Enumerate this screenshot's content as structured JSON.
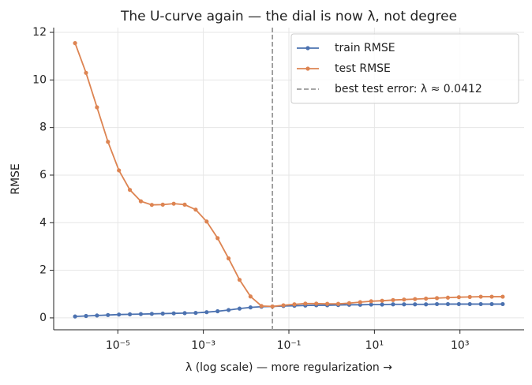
{
  "chart_data": {
    "type": "line",
    "title": "The U-curve again — the dial is now λ, not degree",
    "xlabel": "λ (log scale) — more regularization  →",
    "ylabel": "RMSE",
    "x": [
      1e-06,
      1.805e-06,
      3.257e-06,
      5.878e-06,
      1.061e-05,
      1.914e-05,
      3.455e-05,
      6.236e-05,
      0.0001125,
      0.0002031,
      0.0003665,
      0.0006615,
      0.001194,
      0.002154,
      0.003888,
      0.007017,
      0.01266,
      0.02285,
      0.04125,
      0.07444,
      0.1344,
      0.2424,
      0.4375,
      0.7896,
      1.425,
      2.572,
      4.642,
      8.377,
      15.12,
      27.28,
      49.24,
      88.86,
      160.4,
      289.4,
      522.3,
      942.7,
      1701,
      3070,
      5541,
      10000
    ],
    "series": [
      {
        "name": "train RMSE",
        "color": "#4c72b0",
        "values": [
          0.06,
          0.08,
          0.1,
          0.12,
          0.14,
          0.15,
          0.16,
          0.17,
          0.18,
          0.19,
          0.2,
          0.21,
          0.24,
          0.28,
          0.33,
          0.39,
          0.44,
          0.47,
          0.48,
          0.5,
          0.51,
          0.52,
          0.53,
          0.53,
          0.54,
          0.55,
          0.55,
          0.56,
          0.56,
          0.57,
          0.57,
          0.57,
          0.57,
          0.58,
          0.58,
          0.58,
          0.58,
          0.58,
          0.58,
          0.58
        ]
      },
      {
        "name": "test RMSE",
        "color": "#dd8452",
        "values": [
          11.55,
          10.3,
          8.85,
          7.4,
          6.2,
          5.38,
          4.9,
          4.75,
          4.76,
          4.8,
          4.76,
          4.55,
          4.05,
          3.35,
          2.5,
          1.6,
          0.9,
          0.5,
          0.48,
          0.53,
          0.57,
          0.6,
          0.6,
          0.59,
          0.59,
          0.62,
          0.66,
          0.7,
          0.72,
          0.75,
          0.77,
          0.79,
          0.81,
          0.83,
          0.85,
          0.87,
          0.88,
          0.89,
          0.89,
          0.89
        ]
      }
    ],
    "vline": {
      "value": 0.0412,
      "label": "best test error: λ ≈  0.0412",
      "color": "#999999"
    },
    "xscale": "log",
    "xlim": [
      3.162e-07,
      31620
    ],
    "xticks": [
      {
        "value": 1e-05,
        "label": "10⁻⁵"
      },
      {
        "value": 0.001,
        "label": "10⁻³"
      },
      {
        "value": 0.1,
        "label": "10⁻¹"
      },
      {
        "value": 10,
        "label": "10¹"
      },
      {
        "value": 1000,
        "label": "10³"
      }
    ],
    "ylim": [
      -0.5,
      12.2
    ],
    "yticks": [
      0,
      2,
      4,
      6,
      8,
      10,
      12
    ],
    "grid": true,
    "legend": "upper right"
  }
}
